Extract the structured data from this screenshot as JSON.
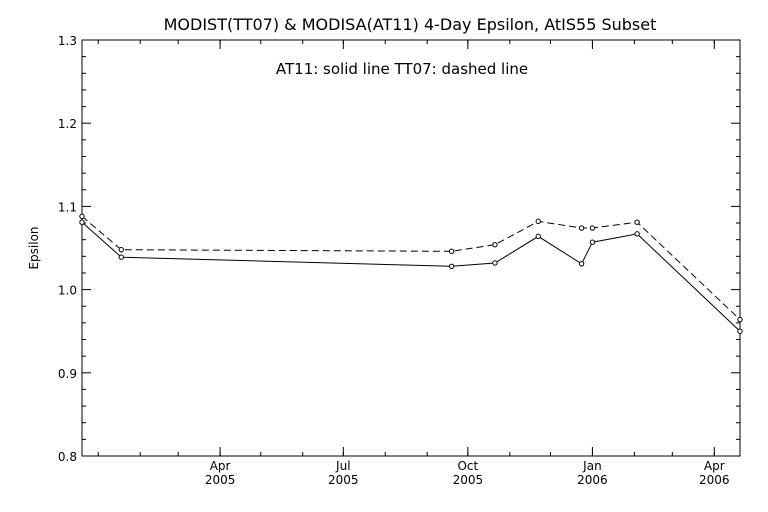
{
  "chart_data": {
    "type": "line",
    "title": "MODIST(TT07) & MODISA(AT11) 4-Day Epsilon, AtIS55 Subset",
    "annotation": "AT11: solid line   TT07: dashed line",
    "ylabel": "Epsilon",
    "xlabel": "",
    "x_range": [
      "2004-12-20",
      "2006-04-20"
    ],
    "ylim": [
      0.8,
      1.3
    ],
    "y_ticks": [
      "0.8",
      "0.9",
      "1.0",
      "1.1",
      "1.2",
      "1.3"
    ],
    "x_ticks": [
      {
        "date": "2005-04-01",
        "month": "Apr",
        "year": "2005"
      },
      {
        "date": "2005-07-01",
        "month": "Jul",
        "year": "2005"
      },
      {
        "date": "2005-10-01",
        "month": "Oct",
        "year": "2005"
      },
      {
        "date": "2006-01-01",
        "month": "Jan",
        "year": "2006"
      },
      {
        "date": "2006-04-01",
        "month": "Apr",
        "year": "2006"
      }
    ],
    "grid": false,
    "legend": "none",
    "series": [
      {
        "name": "AT11",
        "style": "solid",
        "x": [
          "2004-12-20",
          "2005-01-18",
          "2005-09-19",
          "2005-10-21",
          "2005-11-22",
          "2005-12-24",
          "2006-01-01",
          "2006-02-03",
          "2006-04-20"
        ],
        "y": [
          1.081,
          1.039,
          1.028,
          1.032,
          1.064,
          1.031,
          1.057,
          1.067,
          0.95
        ]
      },
      {
        "name": "TT07",
        "style": "dashed",
        "x": [
          "2004-12-20",
          "2005-01-18",
          "2005-09-19",
          "2005-10-21",
          "2005-11-22",
          "2005-12-24",
          "2006-01-01",
          "2006-02-03",
          "2006-04-20"
        ],
        "y": [
          1.088,
          1.048,
          1.046,
          1.054,
          1.082,
          1.074,
          1.074,
          1.081,
          0.964
        ]
      }
    ]
  }
}
